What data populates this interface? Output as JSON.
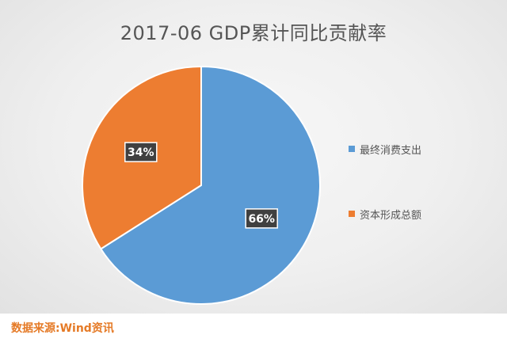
{
  "chart_data": {
    "type": "pie",
    "title": "2017-06  GDP累计同比贡献率",
    "series": [
      {
        "name": "最终消费支出",
        "value": 66,
        "label": "66%",
        "color": "#5b9bd5"
      },
      {
        "name": "资本形成总额",
        "value": 34,
        "label": "34%",
        "color": "#ed7d31"
      }
    ],
    "legend_position": "right"
  },
  "source": "数据来源:Wind资讯"
}
